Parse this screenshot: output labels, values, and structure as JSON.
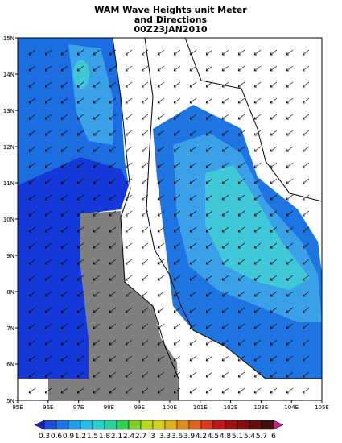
{
  "title_lines": [
    "WAM Wave Heights unit Meter",
    "and Directions",
    "00Z23JAN2010"
  ],
  "lon_labels": [
    "95E",
    "96E",
    "97E",
    "98E",
    "99E",
    "100E",
    "101E",
    "102E",
    "103E",
    "104E",
    "105E"
  ],
  "lat_labels": [
    "5N",
    "6N",
    "7N",
    "8N",
    "9N",
    "10N",
    "11N",
    "12N",
    "13N",
    "14N",
    "15N"
  ],
  "colorbar": {
    "levels": [
      0.3,
      0.6,
      0.9,
      1.2,
      1.5,
      1.8,
      2.1,
      2.4,
      2.7,
      3,
      3.3,
      3.6,
      3.9,
      4.2,
      4.5,
      4.8,
      5.1,
      5.4,
      5.7,
      6
    ],
    "colors": [
      "#1c22c8",
      "#1c4ed8",
      "#1e74e0",
      "#229ce8",
      "#26bce8",
      "#2ad0c8",
      "#2ad29a",
      "#32d050",
      "#7ed028",
      "#b8d820",
      "#d8d020",
      "#e0b020",
      "#e08c20",
      "#e06420",
      "#d83a1c",
      "#c01818",
      "#a01212",
      "#801010",
      "#601010",
      "#401010",
      "#c8208c"
    ]
  }
}
